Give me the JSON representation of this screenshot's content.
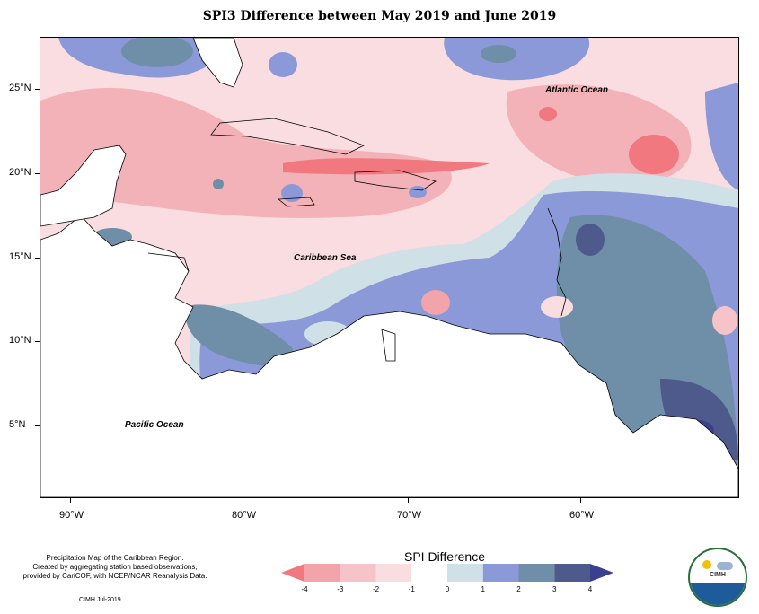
{
  "title": "SPI3 Difference between May 2019 and June 2019",
  "map": {
    "labels": {
      "atlantic": "Atlantic Ocean",
      "caribbean": "Caribbean Sea",
      "pacific": "Pacific Ocean"
    },
    "lat_ticks": [
      "25°N",
      "20°N",
      "15°N",
      "10°N",
      "5°N"
    ],
    "lon_ticks": [
      "90°W",
      "80°W",
      "70°W",
      "60°W"
    ]
  },
  "caption": {
    "line1": "Precipitation Map of the Caribbean Region.",
    "line2": "Created by aggregating station based observations,",
    "line3": "provided by CariCOF, with NCEP/NCAR Reanalysis Data.",
    "credit": "CIMH Jul-2019"
  },
  "legend": {
    "title": "SPI Difference",
    "ticks": [
      "-4",
      "-3",
      "-2",
      "-1",
      "0",
      "1",
      "2",
      "3",
      "4"
    ],
    "colors": [
      "#f1787f",
      "#f3a4aa",
      "#f6c4c8",
      "#fadde0",
      "#ffffff",
      "#cfe0e7",
      "#8c99d8",
      "#6f8fa8",
      "#4f5a8c",
      "#3b3f8f"
    ]
  },
  "logo": {
    "text": "CIMH"
  }
}
